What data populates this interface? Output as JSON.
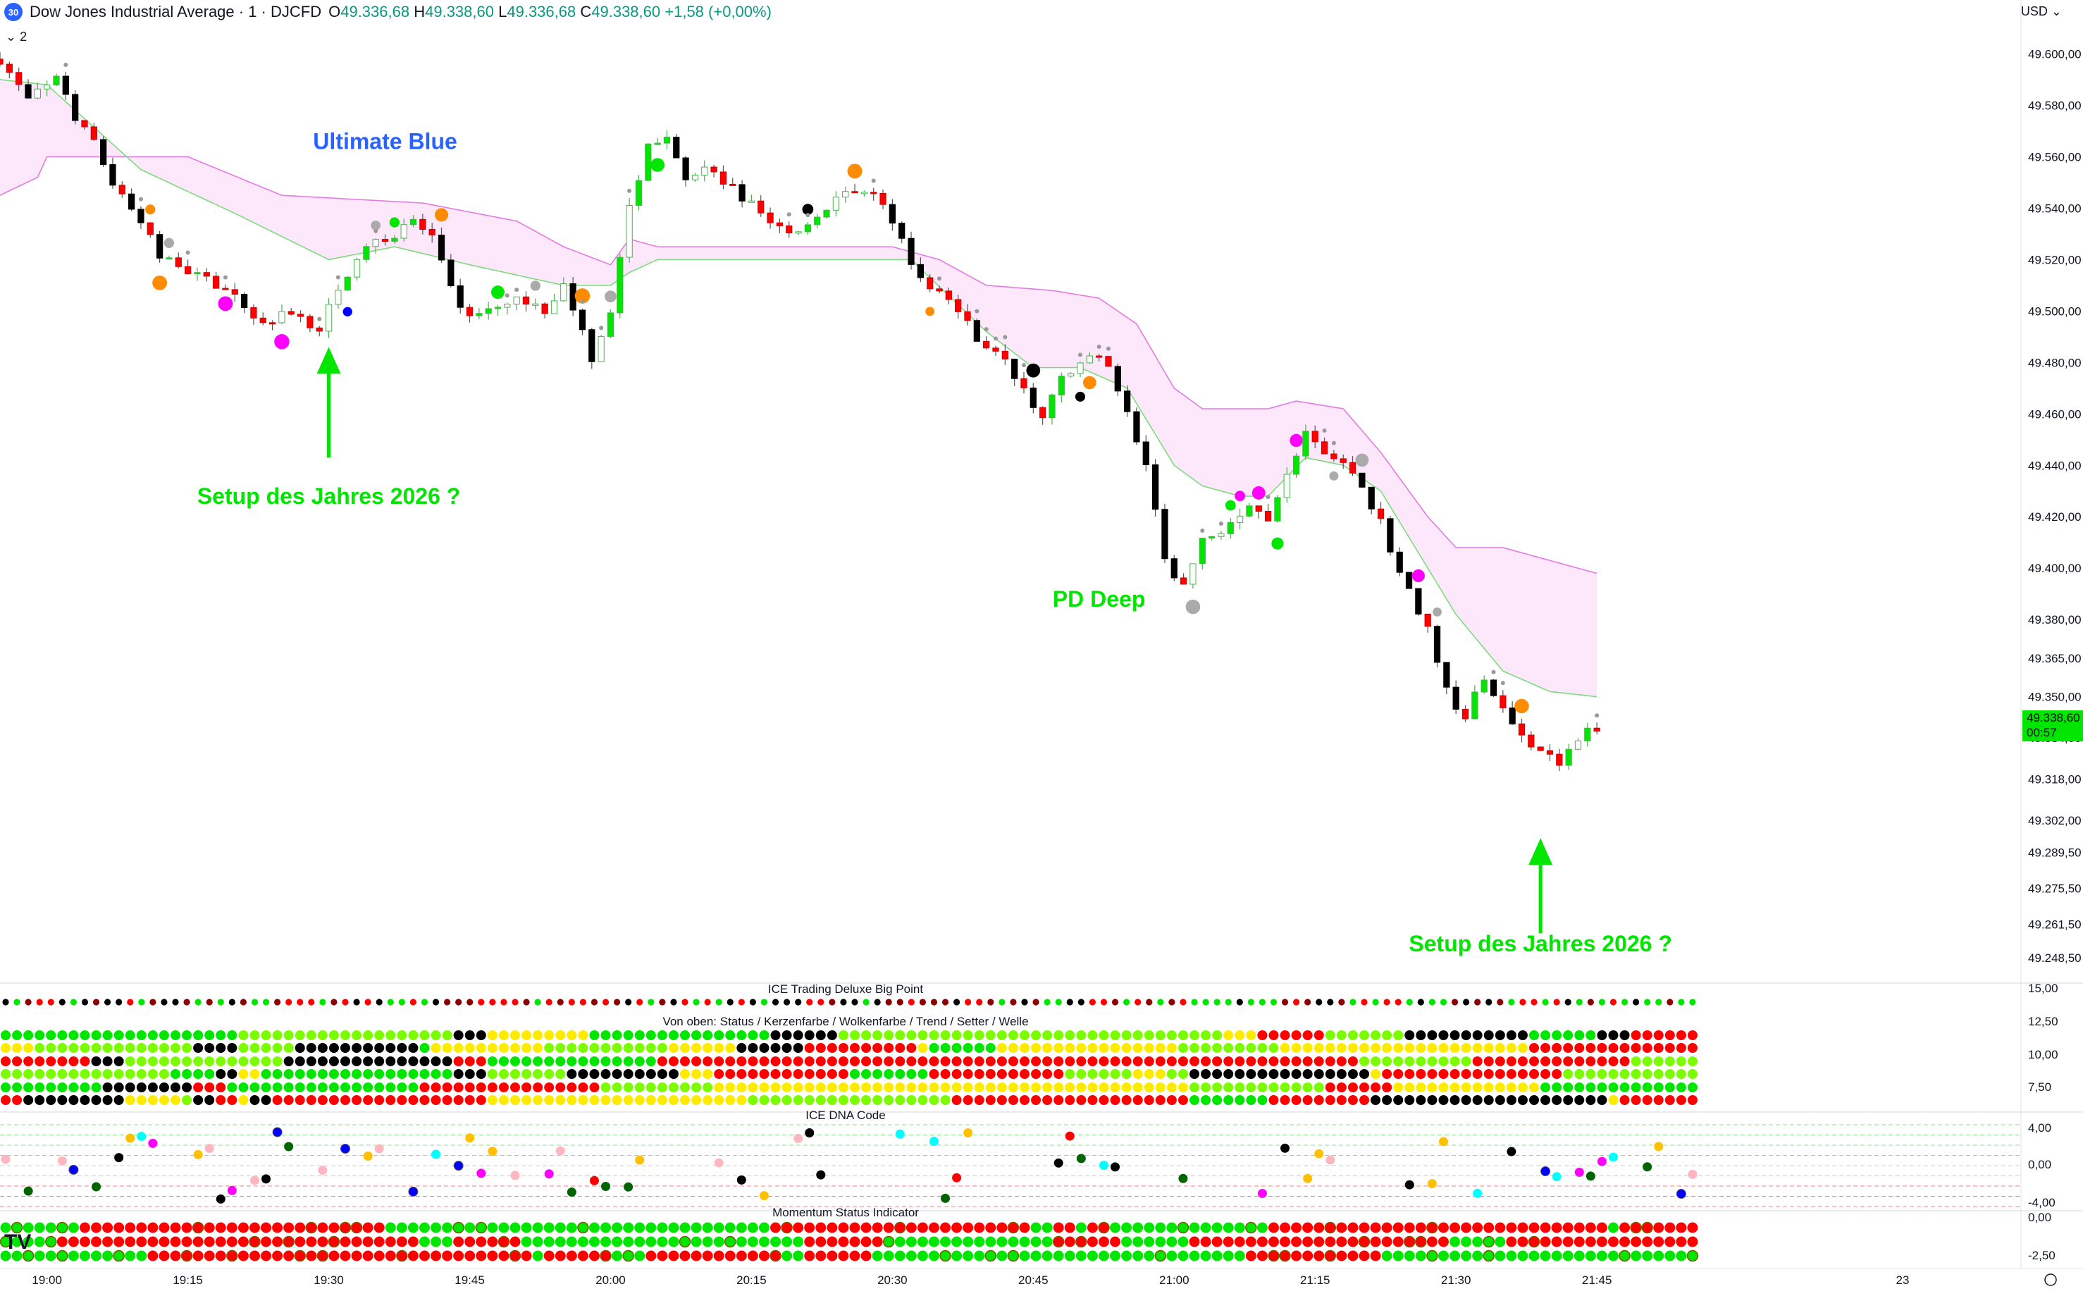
{
  "header": {
    "badge": "30",
    "symbol": "Dow Jones Industrial Average · 1 · DJCFD",
    "open_label": "O",
    "open": "49.336,68",
    "high_label": "H",
    "high": "49.338,60",
    "low_label": "L",
    "low": "49.336,68",
    "close_label": "C",
    "close": "49.338,60",
    "change": "+1,58 (+0,00%)",
    "currency": "USD",
    "collapse_count": "2"
  },
  "colors": {
    "bull": "#00e600",
    "bear": "#ff0000",
    "strong_bear": "#000000",
    "cloud": "#fce3fa",
    "cloud_line_upper": "#e37be0",
    "cloud_line_lower": "#7ddb7d",
    "annotation_green": "#00e600",
    "annotation_blue": "#2962ff"
  },
  "chart_data": [
    {
      "type": "candlestick",
      "title": "Dow Jones Industrial Average · 1 · DJCFD",
      "ylim": [
        49240,
        49610
      ],
      "y_ticks": [
        "49.600,00",
        "49.580,00",
        "49.560,00",
        "49.540,00",
        "49.520,00",
        "49.500,00",
        "49.480,00",
        "49.460,00",
        "49.440,00",
        "49.420,00",
        "49.400,00",
        "49.380,00",
        "49.365,00",
        "49.350,00",
        "49.334,00",
        "49.318,00",
        "49.302,00",
        "49.289,50",
        "49.275,50",
        "49.261,50",
        "49.248,50"
      ],
      "x_ticks": [
        "19:00",
        "19:15",
        "19:30",
        "19:45",
        "20:00",
        "20:15",
        "20:30",
        "20:45",
        "21:00",
        "21:15",
        "21:30",
        "21:45",
        "23"
      ],
      "x_range": [
        "18:55",
        "22:30"
      ],
      "last_price": "49.338,60",
      "countdown": "00:57",
      "price_path_approx": [
        [
          "18:55",
          49598
        ],
        [
          "18:58",
          49582
        ],
        [
          "19:01",
          49590
        ],
        [
          "19:03",
          49575
        ],
        [
          "19:05",
          49565
        ],
        [
          "19:07",
          49550
        ],
        [
          "19:10",
          49535
        ],
        [
          "19:12",
          49522
        ],
        [
          "19:15",
          49515
        ],
        [
          "19:18",
          49510
        ],
        [
          "19:20",
          49505
        ],
        [
          "19:23",
          49495
        ],
        [
          "19:26",
          49500
        ],
        [
          "19:29",
          49493
        ],
        [
          "19:31",
          49510
        ],
        [
          "19:34",
          49524
        ],
        [
          "19:37",
          49530
        ],
        [
          "19:39",
          49535
        ],
        [
          "19:41",
          49528
        ],
        [
          "19:43",
          49508
        ],
        [
          "19:45",
          49498
        ],
        [
          "19:47",
          49502
        ],
        [
          "19:50",
          49505
        ],
        [
          "19:53",
          49500
        ],
        [
          "19:55",
          49510
        ],
        [
          "19:58",
          49482
        ],
        [
          "20:00",
          49500
        ],
        [
          "20:02",
          49540
        ],
        [
          "20:04",
          49565
        ],
        [
          "20:06",
          49568
        ],
        [
          "20:08",
          49550
        ],
        [
          "20:10",
          49556
        ],
        [
          "20:13",
          49548
        ],
        [
          "20:16",
          49538
        ],
        [
          "20:19",
          49530
        ],
        [
          "20:22",
          49536
        ],
        [
          "20:25",
          49548
        ],
        [
          "20:28",
          49545
        ],
        [
          "20:30",
          49536
        ],
        [
          "20:33",
          49512
        ],
        [
          "20:36",
          49505
        ],
        [
          "20:39",
          49490
        ],
        [
          "20:42",
          49480
        ],
        [
          "20:44",
          49470
        ],
        [
          "20:46",
          49458
        ],
        [
          "20:48",
          49475
        ],
        [
          "20:51",
          49482
        ],
        [
          "20:53",
          49480
        ],
        [
          "20:55",
          49460
        ],
        [
          "20:57",
          49440
        ],
        [
          "20:59",
          49402
        ],
        [
          "21:01",
          49393
        ],
        [
          "21:03",
          49410
        ],
        [
          "21:06",
          49418
        ],
        [
          "21:08",
          49425
        ],
        [
          "21:10",
          49418
        ],
        [
          "21:12",
          49438
        ],
        [
          "21:14",
          49452
        ],
        [
          "21:16",
          49445
        ],
        [
          "21:18",
          49440
        ],
        [
          "21:20",
          49432
        ],
        [
          "21:22",
          49418
        ],
        [
          "21:24",
          49398
        ],
        [
          "21:27",
          49376
        ],
        [
          "21:29",
          49352
        ],
        [
          "21:31",
          49342
        ],
        [
          "21:33",
          49358
        ],
        [
          "21:35",
          49344
        ],
        [
          "21:37",
          49334
        ],
        [
          "21:39",
          49330
        ],
        [
          "21:41",
          49324
        ],
        [
          "21:43",
          49334
        ],
        [
          "21:45",
          49338.6
        ]
      ],
      "cloud_upper_approx": [
        [
          "18:55",
          49545
        ],
        [
          "18:59",
          49552
        ],
        [
          "19:00",
          49560
        ],
        [
          "19:15",
          49560
        ],
        [
          "19:25",
          49545
        ],
        [
          "19:40",
          49542
        ],
        [
          "19:50",
          49535
        ],
        [
          "19:55",
          49525
        ],
        [
          "20:00",
          49518
        ],
        [
          "20:02",
          49528
        ],
        [
          "20:05",
          49525
        ],
        [
          "20:30",
          49525
        ],
        [
          "20:35",
          49520
        ],
        [
          "20:40",
          49510
        ],
        [
          "20:47",
          49508
        ],
        [
          "20:52",
          49505
        ],
        [
          "20:56",
          49495
        ],
        [
          "21:00",
          49470
        ],
        [
          "21:03",
          49462
        ],
        [
          "21:10",
          49462
        ],
        [
          "21:13",
          49465
        ],
        [
          "21:18",
          49462
        ],
        [
          "21:22",
          49445
        ],
        [
          "21:27",
          49420
        ],
        [
          "21:30",
          49408
        ],
        [
          "21:35",
          49408
        ],
        [
          "21:40",
          49403
        ],
        [
          "21:45",
          49398
        ]
      ],
      "cloud_lower_approx": [
        [
          "18:55",
          49590
        ],
        [
          "19:00",
          49588
        ],
        [
          "19:10",
          49555
        ],
        [
          "19:20",
          49538
        ],
        [
          "19:30",
          49520
        ],
        [
          "19:37",
          49525
        ],
        [
          "19:45",
          49518
        ],
        [
          "19:55",
          49510
        ],
        [
          "20:00",
          49510
        ],
        [
          "20:02",
          49515
        ],
        [
          "20:05",
          49520
        ],
        [
          "20:15",
          49520
        ],
        [
          "20:30",
          49520
        ],
        [
          "20:32",
          49520
        ],
        [
          "20:40",
          49492
        ],
        [
          "20:45",
          49478
        ],
        [
          "20:50",
          49478
        ],
        [
          "20:55",
          49470
        ],
        [
          "21:00",
          49440
        ],
        [
          "21:03",
          49432
        ],
        [
          "21:07",
          49428
        ],
        [
          "21:10",
          49428
        ],
        [
          "21:14",
          49443
        ],
        [
          "21:18",
          49440
        ],
        [
          "21:22",
          49430
        ],
        [
          "21:27",
          49400
        ],
        [
          "21:30",
          49382
        ],
        [
          "21:35",
          49360
        ],
        [
          "21:40",
          49352
        ],
        [
          "21:45",
          49350
        ]
      ],
      "annotations": [
        {
          "text": "Ultimate Blue",
          "color": "#2962ff",
          "time": "19:36",
          "price": 49563
        },
        {
          "text": "Setup des Jahres 2026 ?",
          "color": "#00e600",
          "time": "19:30",
          "price": 49425
        },
        {
          "text": "PD Deep",
          "color": "#00e600",
          "time": "20:52",
          "price": 49385
        },
        {
          "text": "Setup des Jahres 2026 ?",
          "color": "#00e600",
          "time": "21:39",
          "price": 49251
        }
      ],
      "arrows": [
        {
          "time": "19:30",
          "price_tip": 49486,
          "price_tail": 49443,
          "direction": "up"
        },
        {
          "time": "21:39",
          "price_tip": 49295,
          "price_tail": 49258,
          "direction": "up"
        }
      ]
    },
    {
      "type": "heatmap",
      "title": "ICE Trading Deluxe Big Point",
      "ylim": [
        14.5,
        15.5
      ],
      "y_ticks": [
        "15,00"
      ],
      "rows": 1,
      "palette": [
        "#000000",
        "#00e600",
        "#ff0000",
        "#8b0000"
      ]
    },
    {
      "type": "heatmap",
      "title": "Von oben: Status / Kerzenfarbe / Wolkenfarbe / Trend / Setter / Welle",
      "ylim": [
        6.5,
        13
      ],
      "y_ticks": [
        "12,50",
        "10,00",
        "7,50"
      ],
      "rows": [
        "Status",
        "Kerzenfarbe",
        "Wolkenfarbe",
        "Trend",
        "Setter",
        "Welle"
      ],
      "palette": [
        "#ffeb00",
        "#ff0000",
        "#00e600",
        "#000000",
        "#7cfc00"
      ]
    },
    {
      "type": "scatter",
      "title": "ICE DNA Code",
      "ylim": [
        -5,
        5
      ],
      "y_ticks": [
        "4,00",
        "0,00",
        "-4,00"
      ],
      "palette": [
        "#0000ff",
        "#006400",
        "#ff00ff",
        "#00ffff",
        "#ffb6c1",
        "#ff0000",
        "#ffc000",
        "#000000"
      ]
    },
    {
      "type": "heatmap",
      "title": "Momentum Status Indicator",
      "ylim": [
        -3,
        0
      ],
      "y_ticks": [
        "0,00",
        "-2,50"
      ],
      "rows": 3,
      "palette": [
        "#ff0000",
        "#00e600"
      ]
    }
  ]
}
